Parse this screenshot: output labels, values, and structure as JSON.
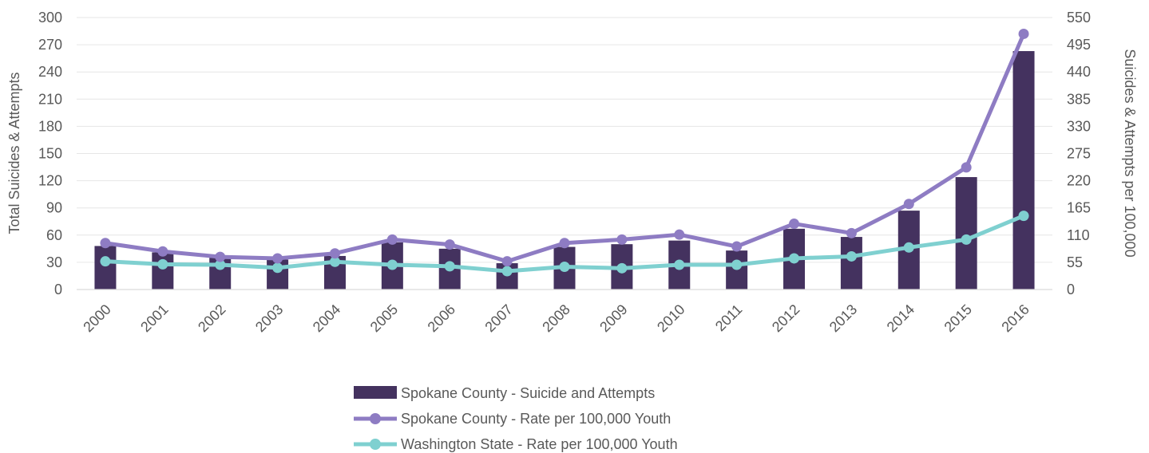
{
  "chart_data": {
    "type": "bar",
    "categories": [
      "2000",
      "2001",
      "2002",
      "2003",
      "2004",
      "2005",
      "2006",
      "2007",
      "2008",
      "2009",
      "2010",
      "2011",
      "2012",
      "2013",
      "2014",
      "2015",
      "2016"
    ],
    "series": [
      {
        "name": "Spokane County - Suicide and Attempts",
        "type": "bar",
        "axis": "left",
        "color": "#44325f",
        "values": [
          48,
          41,
          35,
          33,
          37,
          52,
          45,
          29,
          47,
          50,
          54,
          43,
          67,
          58,
          87,
          124,
          263
        ]
      },
      {
        "name": "Spokane County - Rate per 100,000 Youth",
        "type": "line",
        "axis": "right",
        "color": "#8e7cc3",
        "values": [
          94,
          77,
          66,
          63,
          73,
          101,
          91,
          57,
          94,
          101,
          111,
          87,
          133,
          114,
          173,
          247,
          517
        ]
      },
      {
        "name": "Washington State - Rate per 100,000 Youth",
        "type": "line",
        "axis": "right",
        "color": "#7fd0d0",
        "values": [
          57,
          51,
          50,
          44,
          56,
          50,
          47,
          37,
          46,
          43,
          50,
          50,
          63,
          67,
          85,
          101,
          149
        ]
      }
    ],
    "left_axis": {
      "label": "Total Suicides & Attempts",
      "ylim": [
        0,
        300
      ],
      "ticks": [
        "0",
        "30",
        "60",
        "90",
        "120",
        "150",
        "180",
        "210",
        "240",
        "270",
        "300"
      ]
    },
    "right_axis": {
      "label": "Suicides & Attempts per 100,000",
      "ylim": [
        0,
        550
      ],
      "ticks": [
        "0",
        "55",
        "110",
        "165",
        "220",
        "275",
        "330",
        "385",
        "440",
        "495",
        "550"
      ]
    },
    "grid": true,
    "legend_position": "bottom",
    "title": "",
    "xlabel": ""
  }
}
